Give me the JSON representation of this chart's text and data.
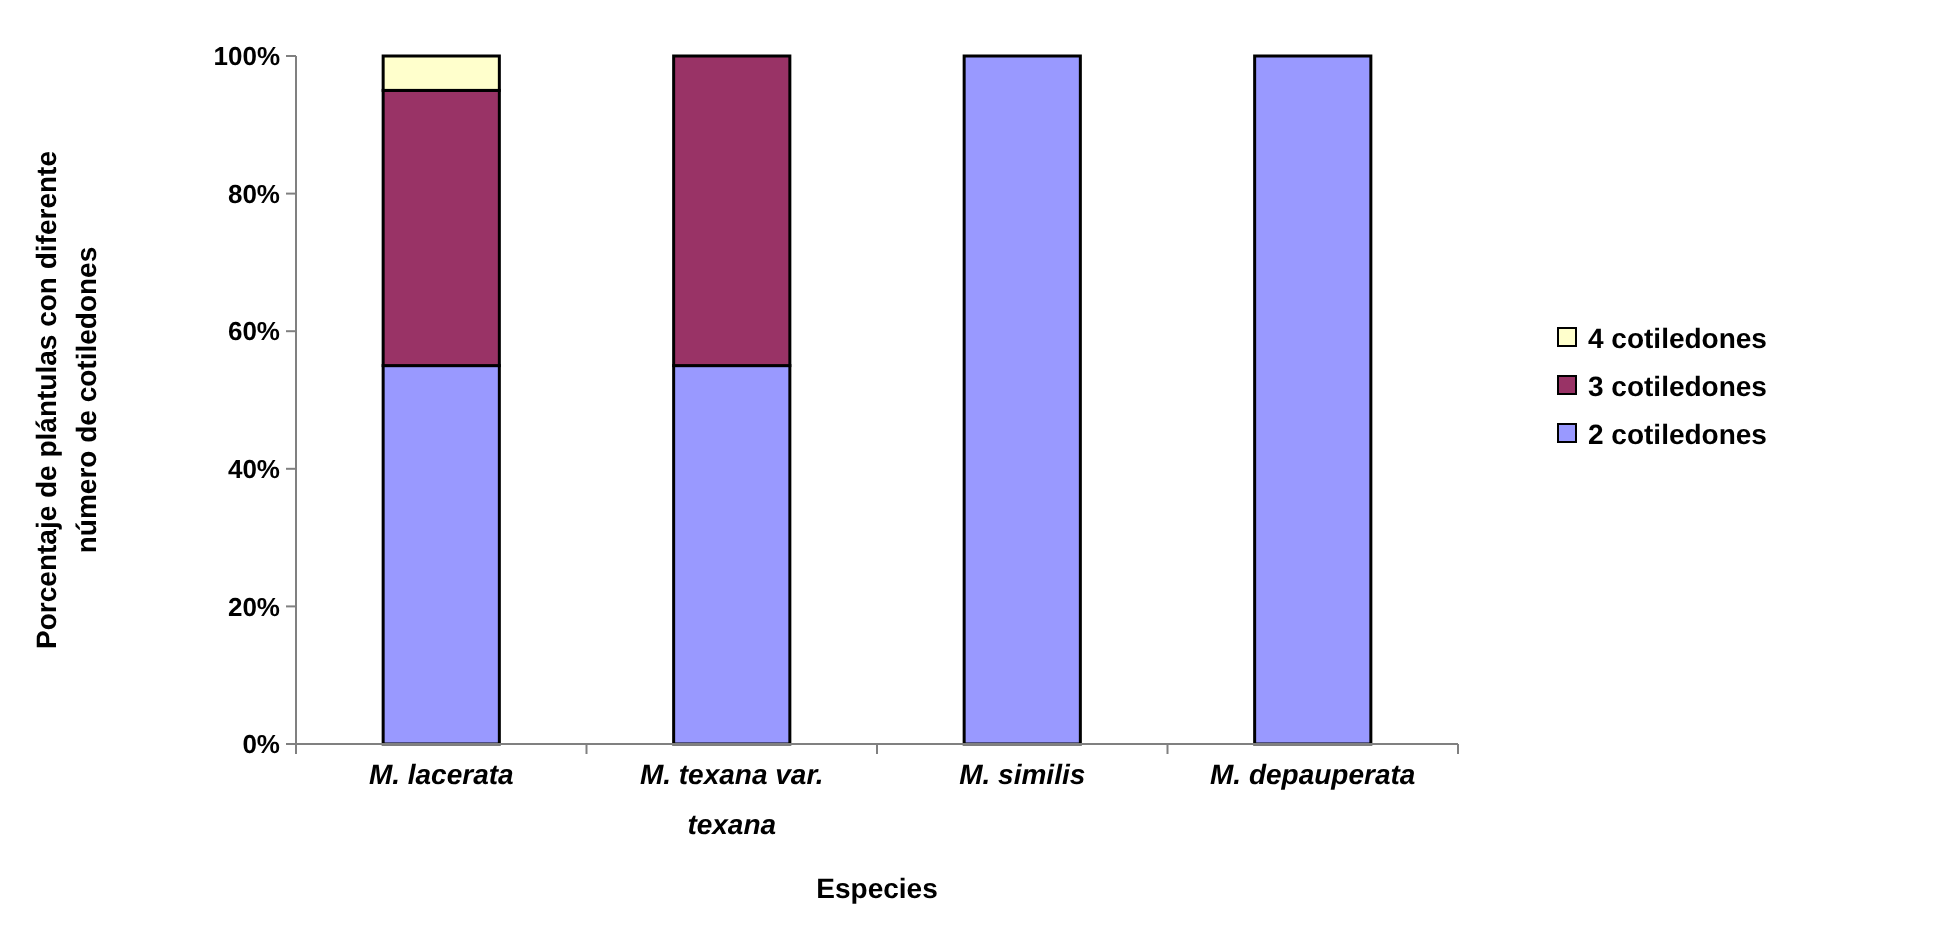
{
  "chart_data": {
    "type": "bar",
    "stacked": true,
    "xlabel": "Especies",
    "ylabel": "Porcentaje de plántulas con diferente número de cotiledones",
    "categories": [
      "M. lacerata",
      "M. texana var. texana",
      "M. similis",
      "M. depauperata"
    ],
    "series": [
      {
        "name": "2 cotiledones",
        "color": "#9999ff",
        "values": [
          55,
          55,
          100,
          100
        ]
      },
      {
        "name": "3 cotiledones",
        "color": "#993366",
        "values": [
          40,
          45,
          0,
          0
        ]
      },
      {
        "name": "4 cotiledones",
        "color": "#ffffcc",
        "values": [
          5,
          0,
          0,
          0
        ]
      }
    ],
    "ylim": [
      0,
      100
    ],
    "yticks": [
      {
        "value": 0,
        "label": "0%"
      },
      {
        "value": 20,
        "label": "20%"
      },
      {
        "value": 40,
        "label": "40%"
      },
      {
        "value": 60,
        "label": "60%"
      },
      {
        "value": 80,
        "label": "80%"
      },
      {
        "value": 100,
        "label": "100%"
      }
    ],
    "grid": false,
    "legend": "right"
  }
}
